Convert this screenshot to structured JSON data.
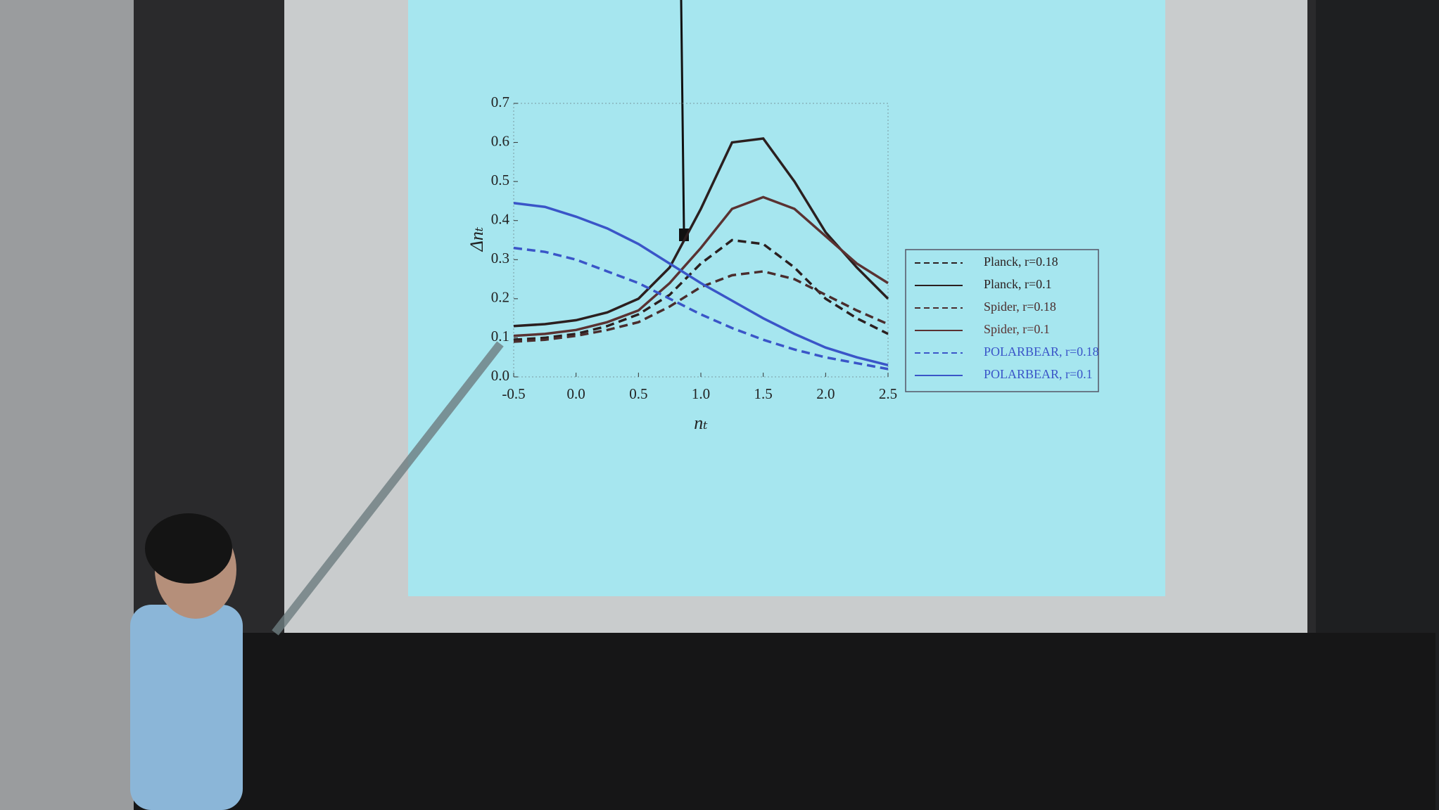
{
  "chart_data": {
    "type": "line",
    "x_label": "nₜ",
    "y_label": "Δnₜ",
    "x": [
      -0.5,
      -0.25,
      0,
      0.25,
      0.5,
      0.75,
      1.0,
      1.25,
      1.5,
      1.75,
      2.0,
      2.25,
      2.5
    ],
    "series": [
      {
        "name": "Planck, r=0.18",
        "color": "#2b1f1f",
        "dash": true,
        "values": [
          0.095,
          0.1,
          0.11,
          0.13,
          0.16,
          0.21,
          0.29,
          0.35,
          0.34,
          0.28,
          0.2,
          0.15,
          0.11
        ]
      },
      {
        "name": "Planck, r=0.1",
        "color": "#2b1f1f",
        "dash": false,
        "values": [
          0.13,
          0.135,
          0.145,
          0.165,
          0.2,
          0.28,
          0.43,
          0.6,
          0.61,
          0.5,
          0.37,
          0.28,
          0.2
        ]
      },
      {
        "name": "Spider, r=0.18",
        "color": "#4a2d2d",
        "dash": true,
        "values": [
          0.09,
          0.095,
          0.105,
          0.12,
          0.14,
          0.18,
          0.23,
          0.26,
          0.27,
          0.25,
          0.21,
          0.17,
          0.135
        ]
      },
      {
        "name": "Spider, r=0.1",
        "color": "#5a3232",
        "dash": false,
        "values": [
          0.105,
          0.11,
          0.12,
          0.14,
          0.17,
          0.24,
          0.33,
          0.43,
          0.46,
          0.43,
          0.36,
          0.29,
          0.24
        ]
      },
      {
        "name": "POLARBEAR, r=0.18",
        "color": "#3a55c8",
        "dash": true,
        "values": [
          0.33,
          0.32,
          0.3,
          0.27,
          0.24,
          0.2,
          0.16,
          0.125,
          0.095,
          0.07,
          0.05,
          0.035,
          0.02
        ]
      },
      {
        "name": "POLARBEAR, r=0.1",
        "color": "#3a55c8",
        "dash": false,
        "values": [
          0.445,
          0.435,
          0.41,
          0.38,
          0.34,
          0.29,
          0.24,
          0.195,
          0.15,
          0.11,
          0.075,
          0.05,
          0.03
        ]
      }
    ],
    "xlim": [
      -0.5,
      2.5
    ],
    "ylim": [
      0,
      0.7
    ],
    "xticks": [
      -0.5,
      {
        "value": 0,
        "label": "0.0"
      },
      0.5,
      {
        "value": 1,
        "label": "1.0"
      },
      1.5,
      {
        "value": 2,
        "label": "2.0"
      },
      2.5
    ],
    "yticks": [
      {
        "value": 0,
        "label": "0.0"
      },
      0.1,
      0.2,
      0.3,
      0.4,
      0.5,
      0.6,
      0.7
    ]
  }
}
